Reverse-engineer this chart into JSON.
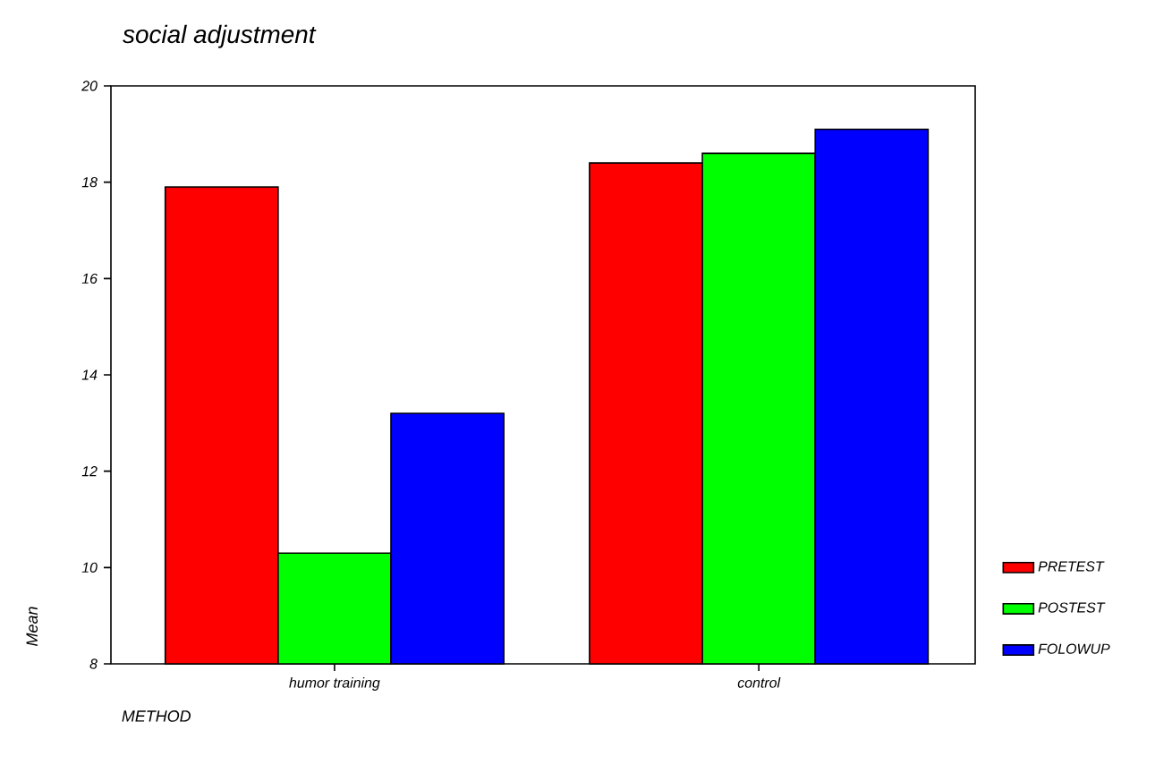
{
  "chart_data": {
    "type": "bar",
    "title": "social adjustment",
    "xlabel": "METHOD",
    "ylabel": "Mean",
    "categories": [
      "humor training",
      "control"
    ],
    "series": [
      {
        "name": "PRETEST",
        "color": "#ff0000",
        "values": [
          17.9,
          18.4
        ]
      },
      {
        "name": "POSTEST",
        "color": "#00ff00",
        "values": [
          10.3,
          18.6
        ]
      },
      {
        "name": "FOLOWUP",
        "color": "#0000ff",
        "values": [
          13.2,
          19.1
        ]
      }
    ],
    "ylim": [
      8,
      20
    ],
    "yticks": [
      8,
      10,
      12,
      14,
      16,
      18,
      20
    ],
    "grid": false,
    "legend": "bottom right"
  }
}
